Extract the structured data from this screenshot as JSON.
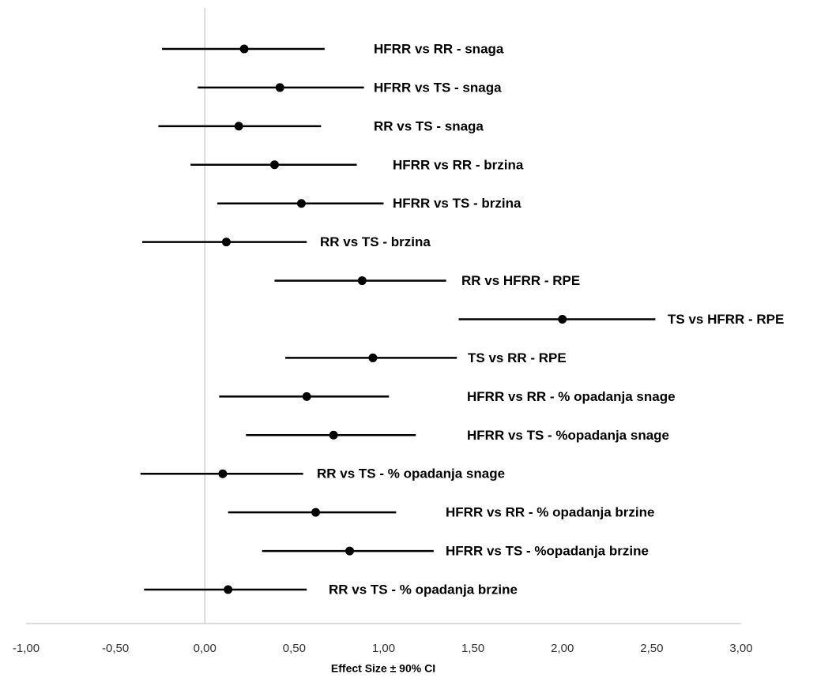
{
  "chart_data": {
    "type": "forest",
    "xlabel": "Effect Size ± 90% CI",
    "categories": [
      "HFRR vs RR - snaga",
      "HFRR vs TS - snaga",
      "RR vs TS - snaga",
      "HFRR vs RR - brzina",
      "HFRR vs TS - brzina",
      "RR vs TS - brzina",
      "RR vs HFRR - RPE",
      "TS vs HFRR - RPE",
      "TS vs RR - RPE",
      "HFRR vs RR - % opadanja snage",
      "HFRR vs TS - %opadanja snage",
      "RR vs TS - % opadanja snage",
      "HFRR vs RR - % opadanja brzine",
      "HFRR vs TS - %opadanja brzine",
      "RR vs TS - % opadanja brzine"
    ],
    "values": [
      0.22,
      0.42,
      0.19,
      0.39,
      0.54,
      0.12,
      0.88,
      2.0,
      0.94,
      0.57,
      0.72,
      0.1,
      0.62,
      0.81,
      0.13
    ],
    "lower": [
      -0.24,
      -0.04,
      -0.26,
      -0.08,
      0.07,
      -0.35,
      0.39,
      1.42,
      0.45,
      0.08,
      0.23,
      -0.36,
      0.13,
      0.32,
      -0.34
    ],
    "upper": [
      0.67,
      0.89,
      0.65,
      0.85,
      1.0,
      0.57,
      1.35,
      2.52,
      1.41,
      1.03,
      1.18,
      0.55,
      1.07,
      1.28,
      0.57
    ],
    "color": "#000000",
    "xlim": [
      -1,
      3
    ],
    "xticks": [
      {
        "value": -1,
        "label": "-1,00"
      },
      {
        "value": -0.5,
        "label": "-0,50"
      },
      {
        "value": 0,
        "label": "0,00"
      },
      {
        "value": 0.5,
        "label": "0,50"
      },
      {
        "value": 1,
        "label": "1,00"
      },
      {
        "value": 1.5,
        "label": "1,50"
      },
      {
        "value": 2,
        "label": "2,00"
      },
      {
        "value": 2.5,
        "label": "2,50"
      },
      {
        "value": 3,
        "label": "3,00"
      }
    ]
  }
}
